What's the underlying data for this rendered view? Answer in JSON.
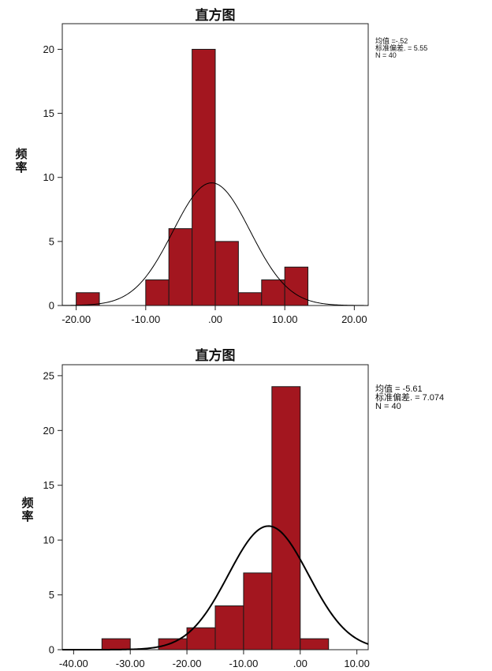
{
  "chart_data": [
    {
      "type": "bar",
      "title": "直方图",
      "ylabel": "频率",
      "xlabel": "",
      "bins": [
        {
          "x0": -20,
          "x1": -16.67,
          "value": 1
        },
        {
          "x0": -10,
          "x1": -6.67,
          "value": 2
        },
        {
          "x0": -6.67,
          "x1": -3.33,
          "value": 6
        },
        {
          "x0": -3.33,
          "x1": 0,
          "value": 20
        },
        {
          "x0": 0,
          "x1": 3.33,
          "value": 5
        },
        {
          "x0": 3.33,
          "x1": 6.67,
          "value": 1
        },
        {
          "x0": 6.67,
          "x1": 10,
          "value": 2
        },
        {
          "x0": 10,
          "x1": 13.33,
          "value": 3
        }
      ],
      "normal_curve": {
        "mean": -0.52,
        "sd": 5.55,
        "n": 40
      },
      "xlim": [
        -22,
        22
      ],
      "ylim": [
        0,
        22
      ],
      "xticks": [
        -20,
        -10,
        0,
        10,
        20
      ],
      "xtick_labels": [
        "-20.00",
        "-10.00",
        ".00",
        "10.00",
        "20.00"
      ],
      "yticks": [
        0,
        5,
        10,
        15,
        20
      ],
      "ytick_labels": [
        "0",
        "5",
        "10",
        "15",
        "20"
      ],
      "stats_lines": [
        "均值 =-.52",
        "标准偏差. = 5.55",
        "N = 40"
      ],
      "bar_color": "#a3161f",
      "grid": false
    },
    {
      "type": "bar",
      "title": "直方图",
      "ylabel": "频率",
      "xlabel": "",
      "bins": [
        {
          "x0": -35,
          "x1": -30,
          "value": 1
        },
        {
          "x0": -25,
          "x1": -20,
          "value": 1
        },
        {
          "x0": -20,
          "x1": -15,
          "value": 2
        },
        {
          "x0": -15,
          "x1": -10,
          "value": 4
        },
        {
          "x0": -10,
          "x1": -5,
          "value": 7
        },
        {
          "x0": -5,
          "x1": 0,
          "value": 24
        },
        {
          "x0": 0,
          "x1": 5,
          "value": 1
        }
      ],
      "normal_curve": {
        "mean": -5.61,
        "sd": 7.074,
        "n": 40
      },
      "xlim": [
        -42,
        12
      ],
      "ylim": [
        0,
        26
      ],
      "xticks": [
        -40,
        -30,
        -20,
        -10,
        0,
        10
      ],
      "xtick_labels": [
        "-40.00",
        "-30.00",
        "-20.00",
        "-10.00",
        ".00",
        "10.00"
      ],
      "yticks": [
        0,
        5,
        10,
        15,
        20,
        25
      ],
      "ytick_labels": [
        "0",
        "5",
        "10",
        "15",
        "20",
        "25"
      ],
      "stats_lines": [
        "均值 = -5.61",
        "标准偏差. = 7.074",
        "N = 40"
      ],
      "bar_color": "#a3161f",
      "grid": false
    }
  ]
}
